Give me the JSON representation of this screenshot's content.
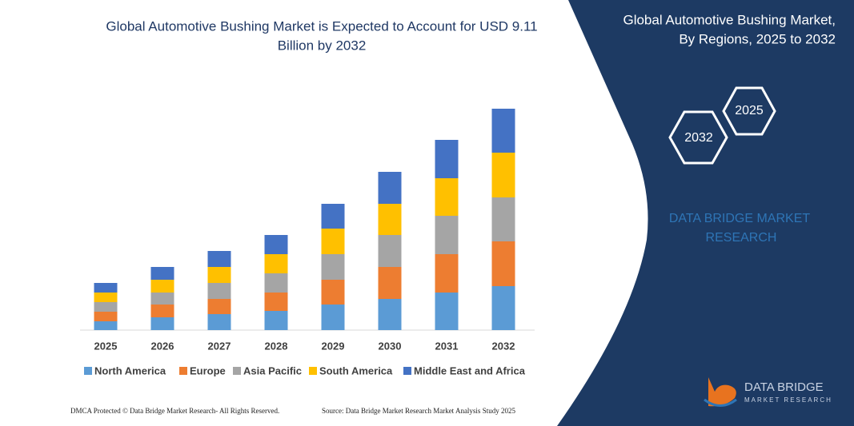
{
  "chart_data": {
    "type": "stacked-bar",
    "title": "Global Automotive Bushing Market is Expected to Account for USD 9.11 Billion by 2032",
    "categories": [
      "2025",
      "2026",
      "2027",
      "2028",
      "2029",
      "2030",
      "2031",
      "2032"
    ],
    "series": [
      {
        "name": "North America",
        "color": "#5b9bd5",
        "values": [
          11,
          16,
          20,
          24,
          32,
          39,
          47,
          55
        ]
      },
      {
        "name": "Europe",
        "color": "#ed7d31",
        "values": [
          12,
          16,
          19,
          23,
          31,
          40,
          48,
          56
        ]
      },
      {
        "name": "Asia Pacific",
        "color": "#a5a5a5",
        "values": [
          12,
          15,
          20,
          24,
          32,
          40,
          48,
          55
        ]
      },
      {
        "name": "South America",
        "color": "#ffc000",
        "values": [
          12,
          16,
          20,
          24,
          32,
          39,
          47,
          56
        ]
      },
      {
        "name": "Middle East and Africa",
        "color": "#4472c4",
        "values": [
          12,
          16,
          20,
          24,
          31,
          40,
          48,
          55
        ]
      }
    ]
  },
  "panel": {
    "title_line1": "Global Automotive Bushing Market,",
    "title_line2": "By Regions, 2025 to 2032",
    "hex_start": "2025",
    "hex_end": "2032",
    "brand_line1": "DATA BRIDGE MARKET",
    "brand_line2": "RESEARCH"
  },
  "footer": {
    "left": "DMCA Protected © Data Bridge Market Research- All Rights Reserved.",
    "right": "Source: Data Bridge Market Research Market Analysis Study 2025"
  },
  "logo": {
    "name": "DATA BRIDGE",
    "tagline": "MARKET RESEARCH"
  }
}
